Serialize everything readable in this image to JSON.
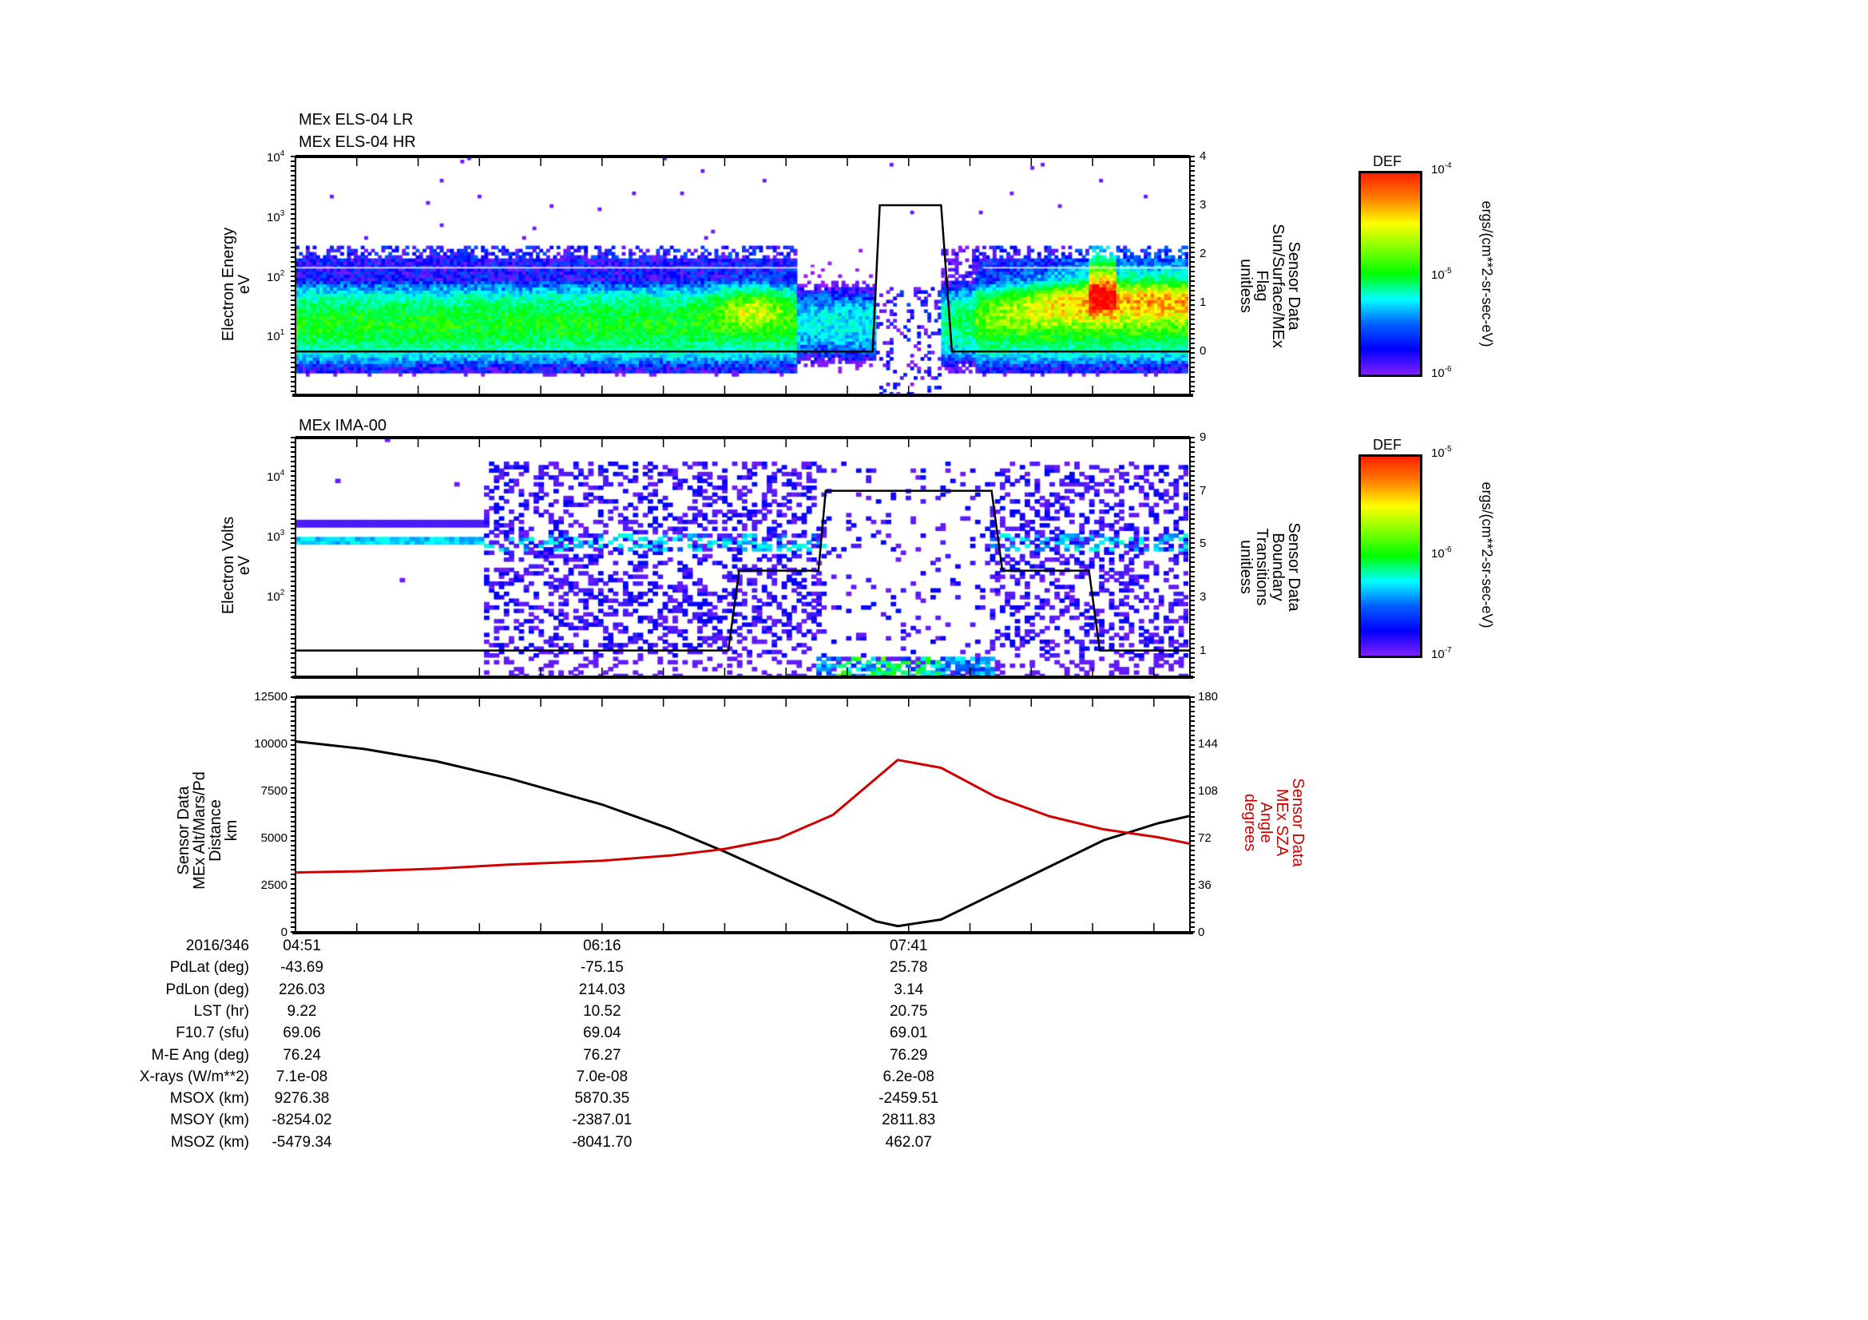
{
  "panel_els": {
    "titles": [
      "MEx ELS-04 LR",
      "MEx ELS-04 HR"
    ],
    "ylabel": [
      "Electron Energy",
      "eV"
    ],
    "y2label": [
      "Sensor Data",
      "Sun/Surface/MEx",
      "Flag",
      "unitless"
    ],
    "yticks": [
      {
        "b": "10",
        "e": "4"
      },
      {
        "b": "10",
        "e": "3"
      },
      {
        "b": "10",
        "e": "2"
      },
      {
        "b": "10",
        "e": "1"
      }
    ],
    "y2ticks": [
      "4",
      "3",
      "2",
      "1",
      "0"
    ],
    "colorbar": {
      "title": "DEF",
      "top": {
        "b": "10",
        "e": "-4"
      },
      "mid": {
        "b": "10",
        "e": "-5"
      },
      "bottom": {
        "b": "10",
        "e": "-6"
      },
      "units": "ergs/(cm**2-sr-sec-eV)"
    }
  },
  "panel_ima": {
    "titles": [
      "MEx IMA-00"
    ],
    "ylabel": [
      "Electron Volts",
      "eV"
    ],
    "y2label": [
      "Sensor Data",
      "Boundary",
      "Transitions",
      "unitless"
    ],
    "yticks": [
      {
        "b": "10",
        "e": "4"
      },
      {
        "b": "10",
        "e": "3"
      },
      {
        "b": "10",
        "e": "2"
      }
    ],
    "y2ticks": [
      "9",
      "7",
      "5",
      "3",
      "1"
    ],
    "colorbar": {
      "title": "DEF",
      "top": {
        "b": "10",
        "e": "-5"
      },
      "mid": {
        "b": "10",
        "e": "-6"
      },
      "bottom": {
        "b": "10",
        "e": "-7"
      },
      "units": "ergs/(cm**2-sr-sec-eV)"
    }
  },
  "panel_alt": {
    "ylabel": [
      "Sensor Data",
      "MEx Alt/Mars/Pd",
      "Distance",
      "km"
    ],
    "y2label": [
      "Sensor Data",
      "MEx SZA",
      "Angle",
      "degrees"
    ],
    "yticks": [
      "12500",
      "10000",
      "7500",
      "5000",
      "2500",
      "0"
    ],
    "y2ticks": [
      "180",
      "144",
      "108",
      "72",
      "36",
      "0"
    ]
  },
  "table": {
    "rows": [
      {
        "label": "2016/346",
        "values": [
          "04:51",
          "06:16",
          "07:41"
        ]
      },
      {
        "label": "PdLat (deg)",
        "values": [
          "-43.69",
          "-75.15",
          "25.78"
        ]
      },
      {
        "label": "PdLon (deg)",
        "values": [
          "226.03",
          "214.03",
          "3.14"
        ]
      },
      {
        "label": "LST (hr)",
        "values": [
          "9.22",
          "10.52",
          "20.75"
        ]
      },
      {
        "label": "F10.7 (sfu)",
        "values": [
          "69.06",
          "69.04",
          "69.01"
        ]
      },
      {
        "label": "M-E Ang (deg)",
        "values": [
          "76.24",
          "76.27",
          "76.29"
        ]
      },
      {
        "label": "X-rays (W/m**2)",
        "values": [
          "7.1e-08",
          "7.0e-08",
          "6.2e-08"
        ]
      },
      {
        "label": "MSOX (km)",
        "values": [
          "9276.38",
          "5870.35",
          "-2459.51"
        ]
      },
      {
        "label": "MSOY (km)",
        "values": [
          "-8254.02",
          "-2387.01",
          "2811.83"
        ]
      },
      {
        "label": "MSOZ (km)",
        "values": [
          "-5479.34",
          "-8041.70",
          "462.07"
        ]
      }
    ]
  },
  "colors": {
    "altitude": "#000000",
    "sza": "#d00000",
    "flag": "#000000"
  },
  "chart_data": [
    {
      "type": "heatmap",
      "title": "MEx ELS-04 LR / MEx ELS-04 HR",
      "xlabel": "time (2016/346)",
      "ylabel": "Electron Energy (eV)",
      "yscale": "log",
      "ylim": [
        1,
        10000
      ],
      "colorbar": {
        "label": "DEF ergs/(cm**2-sr-sec-eV)",
        "range": [
          1e-06,
          0.0001
        ]
      },
      "overlay": {
        "name": "Sun/Surface/MEx Flag",
        "y2lim": [
          -0.9,
          4
        ],
        "x_min_of_day": [
          291,
          451,
          453,
          470,
          473,
          539
        ],
        "values": [
          0,
          0,
          3,
          3,
          0,
          0
        ]
      }
    },
    {
      "type": "heatmap",
      "title": "MEx IMA-00",
      "xlabel": "time (2016/346)",
      "ylabel": "Electron Volts (eV)",
      "yscale": "log",
      "ylim": [
        4.4,
        44000
      ],
      "colorbar": {
        "label": "DEF ergs/(cm**2-sr-sec-eV)",
        "range": [
          1e-07,
          1e-05
        ]
      },
      "overlay": {
        "name": "Boundary Transitions",
        "y2lim": [
          0,
          9
        ],
        "x_min_of_day": [
          291,
          411,
          414,
          436,
          438,
          484,
          487,
          511,
          514,
          539
        ],
        "values": [
          1,
          1,
          4,
          4,
          7,
          7,
          4,
          4,
          1,
          1
        ]
      }
    },
    {
      "type": "line",
      "xlabel": "time (2016/346)",
      "x_ticks": [
        "04:51",
        "06:16",
        "07:41"
      ],
      "x_min_of_day": [
        291,
        310,
        330,
        350,
        376,
        395,
        410,
        425,
        440,
        452,
        458,
        470,
        485,
        500,
        515,
        530,
        539
      ],
      "series": [
        {
          "name": "MEx Alt/Mars/Pd Distance (km)",
          "axis": "left",
          "values": [
            10150,
            9750,
            9100,
            8200,
            6800,
            5500,
            4300,
            3000,
            1700,
            600,
            350,
            700,
            2100,
            3500,
            4900,
            5800,
            6200
          ]
        },
        {
          "name": "MEx SZA Angle (degrees)",
          "axis": "right",
          "values": [
            46,
            47,
            49,
            52,
            55,
            59,
            64,
            72,
            90,
            118,
            132,
            126,
            104,
            89,
            79,
            73,
            68
          ]
        }
      ],
      "ylim": [
        0,
        12500
      ],
      "y2lim": [
        0,
        180
      ]
    }
  ]
}
